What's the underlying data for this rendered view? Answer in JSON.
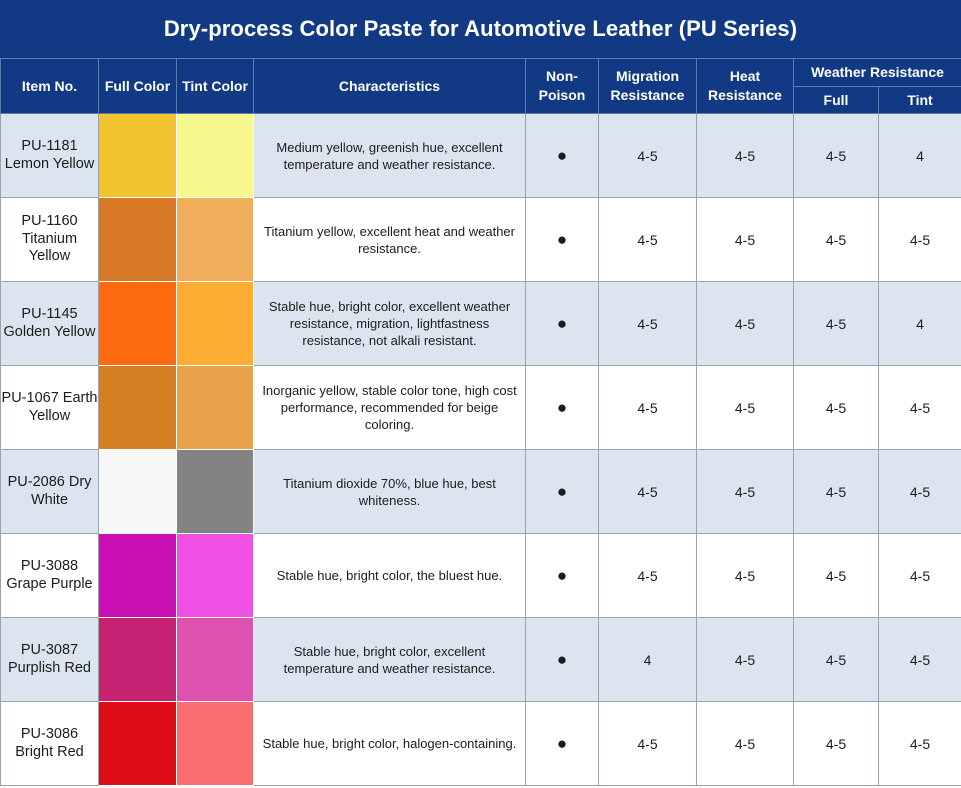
{
  "title": "Dry-process Color Paste for Automotive Leather (PU Series)",
  "headers": {
    "item_no": "Item No.",
    "full_color": "Full Color",
    "tint_color": "Tint Color",
    "characteristics": "Characteristics",
    "non_poison": "Non-Poison",
    "migration": "Migration Resistance",
    "heat": "Heat Resistance",
    "weather": "Weather Resistance",
    "weather_full": "Full",
    "weather_tint": "Tint"
  },
  "rows": [
    {
      "item": "PU-1181 Lemon Yellow",
      "full_color": "#f2c530",
      "tint_color": "#f6f78c",
      "characteristics": "Medium yellow, greenish hue, excellent temperature and weather resistance.",
      "non_poison": "●",
      "migration": "4-5",
      "heat": "4-5",
      "weather_full": "4-5",
      "weather_tint": "4"
    },
    {
      "item": "PU-1160 Titanium Yellow",
      "full_color": "#d97a27",
      "tint_color": "#f0ae5c",
      "characteristics": "Titanium yellow, excellent heat and weather resistance.",
      "non_poison": "●",
      "migration": "4-5",
      "heat": "4-5",
      "weather_full": "4-5",
      "weather_tint": "4-5"
    },
    {
      "item": "PU-1145 Golden Yellow",
      "full_color": "#fd6a0f",
      "tint_color": "#fcac33",
      "characteristics": "Stable hue, bright color, excellent weather resistance, migration, lightfastness resistance, not alkali resistant.",
      "non_poison": "●",
      "migration": "4-5",
      "heat": "4-5",
      "weather_full": "4-5",
      "weather_tint": "4"
    },
    {
      "item": "PU-1067 Earth Yellow",
      "full_color": "#d57f25",
      "tint_color": "#eba34b",
      "characteristics": "Inorganic yellow, stable color tone, high cost performance, recommended for beige coloring.",
      "non_poison": "●",
      "migration": "4-5",
      "heat": "4-5",
      "weather_full": "4-5",
      "weather_tint": "4-5"
    },
    {
      "item": "PU-2086 Dry White",
      "full_color": "#f7f7f7",
      "tint_color": "#838383",
      "characteristics": "Titanium dioxide 70%, blue hue, best whiteness.",
      "non_poison": "●",
      "migration": "4-5",
      "heat": "4-5",
      "weather_full": "4-5",
      "weather_tint": "4-5"
    },
    {
      "item": "PU-3088 Grape Purple",
      "full_color": "#c70fb3",
      "tint_color": "#f050e3",
      "characteristics": "Stable hue, bright color, the bluest hue.",
      "non_poison": "●",
      "migration": "4-5",
      "heat": "4-5",
      "weather_full": "4-5",
      "weather_tint": "4-5"
    },
    {
      "item": "PU-3087 Purplish Red",
      "full_color": "#c72272",
      "tint_color": "#dd52ae",
      "characteristics": "Stable hue, bright color, excellent temperature and weather resistance.",
      "non_poison": "●",
      "migration": "4",
      "heat": "4-5",
      "weather_full": "4-5",
      "weather_tint": "4-5"
    },
    {
      "item": "PU-3086 Bright Red",
      "full_color": "#dd0e18",
      "tint_color": "#fa6e70",
      "characteristics": "Stable hue, bright color, halogen-containing.",
      "non_poison": "●",
      "migration": "4-5",
      "heat": "4-5",
      "weather_full": "4-5",
      "weather_tint": "4-5"
    }
  ]
}
